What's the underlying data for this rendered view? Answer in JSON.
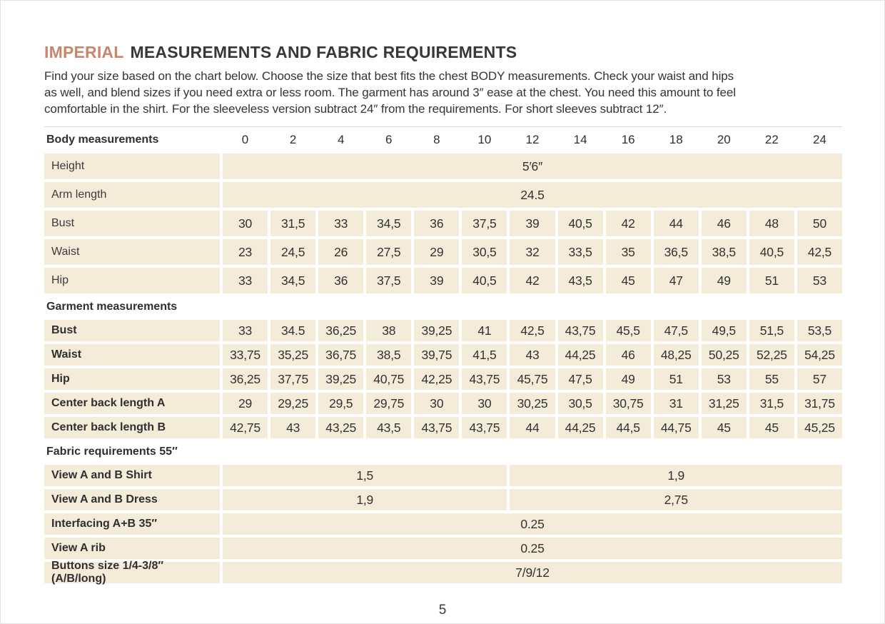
{
  "title": {
    "accent": "IMPERIAL",
    "rest": "MEASUREMENTS AND FABRIC REQUIREMENTS"
  },
  "intro": [
    "Find your size based on the chart below. Choose the size that best fits the chest BODY measurements.  Check your waist and hips",
    "as well, and blend sizes if you need extra or less room. The garment has around 3″ ease at the chest. You need this amount to feel",
    "comfortable in the shirt. For the sleeveless version subtract 24″ from the requirements. For short sleeves subtract 12″."
  ],
  "colors": {
    "accent": "#c9866b",
    "cell_background": "#f5ebd9",
    "text": "#3b3b3b"
  },
  "table": {
    "header": {
      "label": "Body measurements",
      "sizes": [
        "0",
        "2",
        "4",
        "6",
        "8",
        "10",
        "12",
        "14",
        "16",
        "18",
        "20",
        "22",
        "24"
      ]
    },
    "rows": [
      {
        "kind": "span",
        "section": "body",
        "bold": false,
        "label": "Height",
        "value": "5′6″"
      },
      {
        "kind": "span",
        "section": "body",
        "bold": false,
        "label": "Arm length",
        "value": "24.5"
      },
      {
        "kind": "cells",
        "section": "body",
        "bold": false,
        "label": "Bust",
        "values": [
          "30",
          "31,5",
          "33",
          "34,5",
          "36",
          "37,5",
          "39",
          "40,5",
          "42",
          "44",
          "46",
          "48",
          "50"
        ]
      },
      {
        "kind": "cells",
        "section": "body",
        "bold": false,
        "label": "Waist",
        "values": [
          "23",
          "24,5",
          "26",
          "27,5",
          "29",
          "30,5",
          "32",
          "33,5",
          "35",
          "36,5",
          "38,5",
          "40,5",
          "42,5"
        ]
      },
      {
        "kind": "cells",
        "section": "body",
        "bold": false,
        "label": "Hip",
        "values": [
          "33",
          "34,5",
          "36",
          "37,5",
          "39",
          "40,5",
          "42",
          "43,5",
          "45",
          "47",
          "49",
          "51",
          "53"
        ]
      },
      {
        "kind": "section",
        "label": "Garment measurements"
      },
      {
        "kind": "cells",
        "section": "garment",
        "bold": true,
        "label": "Bust",
        "values": [
          "33",
          "34.5",
          "36,25",
          "38",
          "39,25",
          "41",
          "42,5",
          "43,75",
          "45,5",
          "47,5",
          "49,5",
          "51,5",
          "53,5"
        ]
      },
      {
        "kind": "cells",
        "section": "garment",
        "bold": true,
        "label": "Waist",
        "values": [
          "33,75",
          "35,25",
          "36,75",
          "38,5",
          "39,75",
          "41,5",
          "43",
          "44,25",
          "46",
          "48,25",
          "50,25",
          "52,25",
          "54,25"
        ]
      },
      {
        "kind": "cells",
        "section": "garment",
        "bold": true,
        "label": "Hip",
        "values": [
          "36,25",
          "37,75",
          "39,25",
          "40,75",
          "42,25",
          "43,75",
          "45,75",
          "47,5",
          "49",
          "51",
          "53",
          "55",
          "57"
        ]
      },
      {
        "kind": "cells",
        "section": "garment",
        "bold": true,
        "label": "Center back length A",
        "values": [
          "29",
          "29,25",
          "29,5",
          "29,75",
          "30",
          "30",
          "30,25",
          "30,5",
          "30,75",
          "31",
          "31,25",
          "31,5",
          "31,75"
        ]
      },
      {
        "kind": "cells",
        "section": "garment",
        "bold": true,
        "label": "Center back length B",
        "values": [
          "42,75",
          "43",
          "43,25",
          "43,5",
          "43,75",
          "43,75",
          "44",
          "44,25",
          "44,5",
          "44,75",
          "45",
          "45",
          "45,25"
        ]
      },
      {
        "kind": "section",
        "label": "Fabric requirements 55″"
      },
      {
        "kind": "split",
        "section": "fabric",
        "bold": true,
        "label": "View A and B Shirt",
        "left": "1,5",
        "right": "1,9"
      },
      {
        "kind": "split",
        "section": "fabric",
        "bold": true,
        "label": "View A and B Dress",
        "left": "1,9",
        "right": "2,75"
      },
      {
        "kind": "span",
        "section": "fabric",
        "bold": true,
        "label": "Interfacing  A+B 35″",
        "value": "0.25"
      },
      {
        "kind": "span",
        "section": "fabric",
        "bold": true,
        "label": "View A rib",
        "value": "0.25"
      },
      {
        "kind": "span",
        "section": "fabric",
        "bold": true,
        "label": "Buttons size 1/4-3/8″ (A/B/long)",
        "value": "7/9/12"
      }
    ]
  },
  "footer": {
    "page_number": "5"
  }
}
